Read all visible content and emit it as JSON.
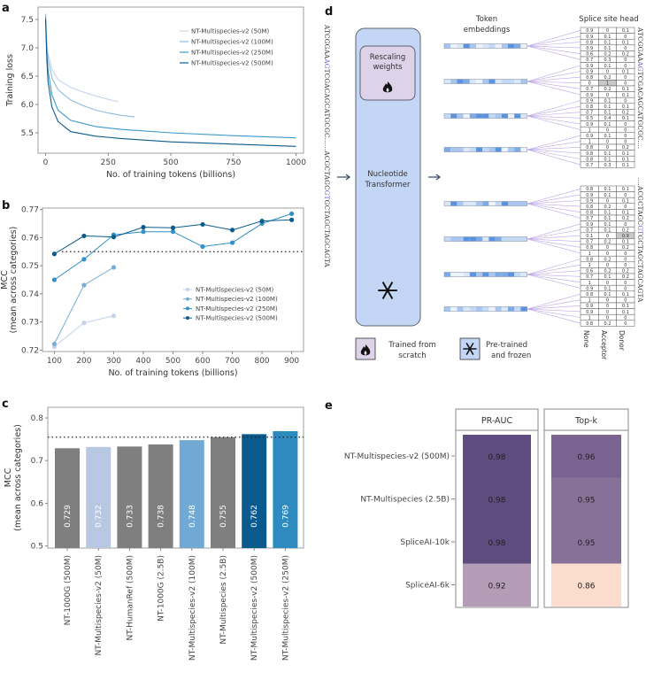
{
  "panel_labels": {
    "a": "a",
    "b": "b",
    "c": "c",
    "d": "d",
    "e": "e"
  },
  "colors": {
    "v2_50M": "#c5d3ea",
    "v2_100M": "#76aed7",
    "v2_250M": "#3190c6",
    "v2_500M": "#0d5a8d",
    "gray": "#7f7f7f",
    "purple_line": "#b9a3e6",
    "transformer_fill": "#c4d6f5",
    "rescaling_fill": "#ddd2e8"
  },
  "chart_data": [
    {
      "id": "a",
      "type": "line",
      "xlabel": "No. of training tokens (billions)",
      "ylabel": "Training loss",
      "xlim": [
        -30,
        1030
      ],
      "ylim": [
        5.14,
        7.72
      ],
      "xticks": [
        0,
        250,
        500,
        750,
        1000
      ],
      "yticks": [
        5.5,
        6.0,
        6.5,
        7.0,
        7.5
      ],
      "ytick_labels": [
        "5.5",
        "6.0",
        "6.5",
        "7.0",
        "7.5"
      ],
      "legend": "top-right",
      "series": [
        {
          "name": "NT-Multispecies-v2 (50M)",
          "color": "#c5d3ea",
          "points": [
            [
              0,
              7.6
            ],
            [
              5,
              7.1
            ],
            [
              10,
              6.9
            ],
            [
              25,
              6.62
            ],
            [
              50,
              6.44
            ],
            [
              100,
              6.3
            ],
            [
              150,
              6.22
            ],
            [
              200,
              6.15
            ],
            [
              250,
              6.09
            ],
            [
              290,
              6.05
            ]
          ]
        },
        {
          "name": "NT-Multispecies-v2 (100M)",
          "color": "#8dbbe0",
          "points": [
            [
              0,
              7.6
            ],
            [
              5,
              7.0
            ],
            [
              10,
              6.8
            ],
            [
              25,
              6.47
            ],
            [
              50,
              6.26
            ],
            [
              100,
              6.08
            ],
            [
              150,
              5.98
            ],
            [
              200,
              5.9
            ],
            [
              250,
              5.85
            ],
            [
              300,
              5.81
            ],
            [
              355,
              5.78
            ]
          ]
        },
        {
          "name": "NT-Multispecies-v2 (250M)",
          "color": "#3b98cc",
          "points": [
            [
              0,
              7.55
            ],
            [
              5,
              6.9
            ],
            [
              10,
              6.6
            ],
            [
              25,
              6.17
            ],
            [
              50,
              5.9
            ],
            [
              100,
              5.72
            ],
            [
              200,
              5.61
            ],
            [
              300,
              5.56
            ],
            [
              500,
              5.5
            ],
            [
              750,
              5.45
            ],
            [
              1000,
              5.41
            ]
          ]
        },
        {
          "name": "NT-Multispecies-v2 (500M)",
          "color": "#0d5a8d",
          "points": [
            [
              0,
              7.5
            ],
            [
              5,
              6.8
            ],
            [
              10,
              6.4
            ],
            [
              25,
              5.96
            ],
            [
              50,
              5.7
            ],
            [
              100,
              5.52
            ],
            [
              200,
              5.44
            ],
            [
              300,
              5.4
            ],
            [
              500,
              5.34
            ],
            [
              750,
              5.3
            ],
            [
              1000,
              5.26
            ]
          ]
        }
      ]
    },
    {
      "id": "b",
      "type": "line",
      "xlabel": "No. of training tokens (billions)",
      "ylabel": "MCC",
      "ylabel2": "(mean across categories)",
      "xlim": [
        60,
        940
      ],
      "ylim": [
        0.7195,
        0.7705
      ],
      "xticks": [
        100,
        200,
        300,
        400,
        500,
        600,
        700,
        800,
        900
      ],
      "yticks": [
        0.72,
        0.73,
        0.74,
        0.75,
        0.76,
        0.77
      ],
      "ytick_labels": [
        "0.72",
        "0.73",
        "0.74",
        "0.75",
        "0.76",
        "0.77"
      ],
      "reference_line": 0.755,
      "legend": "bottom-right",
      "series": [
        {
          "name": "NT-Multispecies-v2 (50M)",
          "color": "#c5d3ea",
          "x": [
            100,
            200,
            300
          ],
          "y": [
            0.7212,
            0.7297,
            0.7322
          ]
        },
        {
          "name": "NT-Multispecies-v2 (100M)",
          "color": "#76aed7",
          "x": [
            100,
            200,
            300
          ],
          "y": [
            0.7222,
            0.7431,
            0.7494
          ]
        },
        {
          "name": "NT-Multispecies-v2 (250M)",
          "color": "#3190c6",
          "x": [
            100,
            200,
            300,
            400,
            500,
            600,
            700,
            800,
            900
          ],
          "y": [
            0.745,
            0.7523,
            0.761,
            0.7621,
            0.7621,
            0.7568,
            0.7582,
            0.765,
            0.7685
          ]
        },
        {
          "name": "NT-Multispecies-v2 (500M)",
          "color": "#0d5a8d",
          "x": [
            100,
            200,
            300,
            400,
            500,
            600,
            700,
            800,
            900
          ],
          "y": [
            0.7542,
            0.7606,
            0.7602,
            0.7637,
            0.7635,
            0.7647,
            0.7627,
            0.7659,
            0.7663
          ]
        }
      ]
    },
    {
      "id": "c",
      "type": "bar",
      "ylabel": "MCC",
      "ylabel2": "(mean across categories)",
      "ylim": [
        0.495,
        0.825
      ],
      "yticks": [
        0.5,
        0.6,
        0.7,
        0.8
      ],
      "ytick_labels": [
        "0.5",
        "0.6",
        "0.7",
        "0.8"
      ],
      "reference_line": 0.755,
      "categories": [
        "NT-1000G (500M)",
        "NT-Multispecies-v2 (50M)",
        "NT-HumanRef (500M)",
        "NT-1000G (2.5B)",
        "NT-Multispecies-v2 (100M)",
        "NT-Multispecies (2.5B)",
        "NT-Multispecies-v2 (500M)",
        "NT-Multispecies-v2 (250M)"
      ],
      "values": [
        0.729,
        0.732,
        0.733,
        0.738,
        0.748,
        0.755,
        0.762,
        0.769
      ],
      "value_labels": [
        "0.729",
        "0.732",
        "0.733",
        "0.738",
        "0.748",
        "0.755",
        "0.762",
        "0.769"
      ],
      "bar_colors": [
        "#7f7f7f",
        "#b8c8e2",
        "#7f7f7f",
        "#7f7f7f",
        "#70a9d3",
        "#7f7f7f",
        "#0b5a8e",
        "#2e8bc0"
      ]
    },
    {
      "id": "e",
      "type": "heatmap",
      "columns": [
        "PR-AUC",
        "Top-k"
      ],
      "rows": [
        "NT-Multispecies-v2 (500M)",
        "NT-Multispecies (2.5B)",
        "SpliceAI-10k",
        "SpliceAI-6k"
      ],
      "values": [
        [
          0.98,
          0.96
        ],
        [
          0.98,
          0.95
        ],
        [
          0.98,
          0.95
        ],
        [
          0.92,
          0.86
        ]
      ],
      "value_labels": [
        [
          "0.98",
          "0.96"
        ],
        [
          "0.98",
          "0.95"
        ],
        [
          "0.98",
          "0.95"
        ],
        [
          "0.92",
          "0.86"
        ]
      ],
      "cell_colors": [
        [
          "#5e4b80",
          "#7a6390"
        ],
        [
          "#5e4b80",
          "#887199"
        ],
        [
          "#5e4b80",
          "#887199"
        ],
        [
          "#b49bb6",
          "#fcdccc"
        ]
      ]
    }
  ],
  "diagram_d": {
    "token_embeddings_title_1": "Token",
    "token_embeddings_title_2": "embeddings",
    "splice_head_title": "Splice site head",
    "transformer_label_1": "Nucleotide",
    "transformer_label_2": "Transformer",
    "rescaling_label_1": "Rescaling",
    "rescaling_label_2": "weights",
    "legend_trained_1": "Trained from",
    "legend_trained_2": "scratch",
    "legend_frozen_1": "Pre-trained",
    "legend_frozen_2": "and frozen",
    "column_labels": [
      "None",
      "Acceptor",
      "Donor"
    ],
    "sequence": {
      "top_pre": "ATCGGAA",
      "top_site": "AG",
      "top_post": "TCGACAGCATGCGC",
      "gap": "......",
      "bottom_pre": "ACGCTAGC",
      "bottom_site": "GT",
      "bottom_post": "GCTAGCTAGCAGTA"
    },
    "head_top": [
      [
        "0.9",
        "0",
        "0.1"
      ],
      [
        "0.9",
        "0.1",
        "0"
      ],
      [
        "0.8",
        "0.1",
        "0.1"
      ],
      [
        "0.9",
        "0.1",
        "0"
      ],
      [
        "0.6",
        "0.2",
        "0.2"
      ],
      [
        "0.7",
        "0.3",
        "0"
      ],
      [
        "0.9",
        "0.1",
        "0"
      ],
      [
        "0.9",
        "0",
        "0.1"
      ],
      [
        "0.8",
        "0.2",
        "0"
      ],
      [
        "0",
        "1",
        "0"
      ],
      [
        "0.7",
        "0.2",
        "0.1"
      ],
      [
        "0.9",
        "0",
        "0.1"
      ],
      [
        "0.9",
        "0.1",
        "0"
      ],
      [
        "0.8",
        "0.1",
        "0.1"
      ],
      [
        "0.7",
        "0.1",
        "0.2"
      ],
      [
        "0.5",
        "0.4",
        "0.1"
      ],
      [
        "0.9",
        "0.1",
        "0"
      ],
      [
        "1",
        "0",
        "0"
      ],
      [
        "0.9",
        "0.1",
        "0"
      ],
      [
        "1",
        "0",
        "0"
      ],
      [
        "0.8",
        "0",
        "0.2"
      ],
      [
        "0.8",
        "0.1",
        "0.1"
      ],
      [
        "0.8",
        "0.1",
        "0.1"
      ],
      [
        "0.7",
        "0.3",
        "0.1"
      ]
    ],
    "head_bottom": [
      [
        "0.8",
        "0.1",
        "0.1"
      ],
      [
        "0.9",
        "0.1",
        "0"
      ],
      [
        "0.9",
        "0",
        "0.1"
      ],
      [
        "0.8",
        "0.2",
        "0"
      ],
      [
        "0.8",
        "0.1",
        "0.1"
      ],
      [
        "0.7",
        "0.1",
        "0.2"
      ],
      [
        "0.9",
        "0.1",
        "0"
      ],
      [
        "0.7",
        "0.1",
        "0.2"
      ],
      [
        "0.1",
        "0",
        "0.9"
      ],
      [
        "0.7",
        "0.2",
        "0.1"
      ],
      [
        "0.8",
        "0",
        "0.2"
      ],
      [
        "1",
        "0",
        "0"
      ],
      [
        "0.8",
        "0.2",
        "0"
      ],
      [
        "1",
        "0",
        "0"
      ],
      [
        "0.6",
        "0.2",
        "0.2"
      ],
      [
        "0.7",
        "0.1",
        "0.2"
      ],
      [
        "1",
        "0",
        "0"
      ],
      [
        "0.9",
        "0.1",
        "0"
      ],
      [
        "0.8",
        "0.1",
        "0.1"
      ],
      [
        "1",
        "0",
        "0"
      ],
      [
        "0.9",
        "0",
        "0.1"
      ],
      [
        "0.9",
        "0",
        "0.1"
      ],
      [
        "1",
        "0",
        "0"
      ],
      [
        "0.8",
        "0.2",
        "0"
      ]
    ],
    "highlight_top": [
      9,
      1
    ],
    "highlight_bottom": [
      8,
      2
    ],
    "icons": [
      "fire-icon",
      "snowflake-icon",
      "arrow-right-icon"
    ]
  }
}
